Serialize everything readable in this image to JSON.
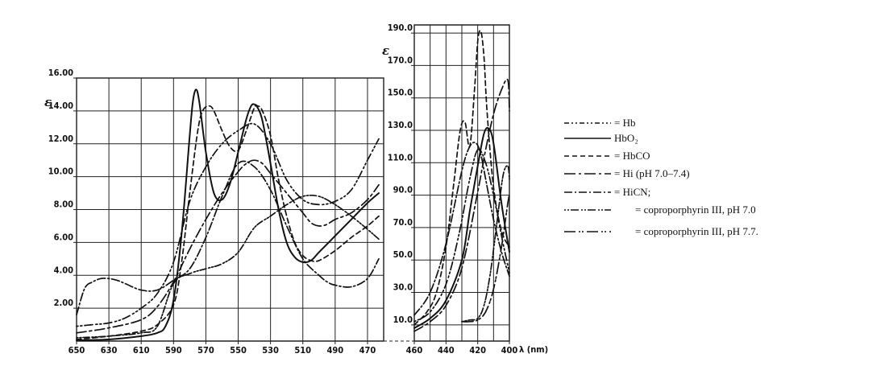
{
  "chart_data": [
    {
      "type": "line",
      "title": "",
      "ylabel": "ε",
      "xlabel": "",
      "xlim": [
        650,
        460
      ],
      "ylim": [
        0,
        16.0
      ],
      "xticks": [
        "650",
        "630",
        "610",
        "590",
        "570",
        "550",
        "530",
        "510",
        "490",
        "470"
      ],
      "yticks": [
        "2.00",
        "4.00",
        "6.00",
        "8.00",
        "10.00",
        "12.00",
        "14.00",
        "16.00"
      ],
      "grid": true,
      "series": [
        {
          "name": "Hb",
          "dash": "2 3 2 3 10 4",
          "x": [
            650,
            640,
            630,
            620,
            610,
            600,
            590,
            580,
            570,
            560,
            550,
            540,
            530,
            520,
            510,
            500,
            490,
            480,
            470,
            463
          ],
          "y": [
            0.9,
            1.0,
            1.1,
            1.4,
            2.0,
            2.9,
            4.8,
            8.5,
            10.6,
            12.0,
            12.8,
            13.2,
            12.0,
            9.8,
            8.6,
            8.3,
            8.5,
            9.2,
            11.0,
            12.3
          ]
        },
        {
          "name": "HbO2",
          "dash": "",
          "x": [
            650,
            630,
            610,
            600,
            595,
            590,
            585,
            580,
            578,
            576,
            574,
            570,
            565,
            560,
            555,
            550,
            545,
            542,
            540,
            538,
            535,
            530,
            525,
            520,
            515,
            510,
            505,
            500,
            490,
            480,
            470,
            463
          ],
          "y": [
            0.05,
            0.1,
            0.3,
            0.5,
            0.9,
            2.5,
            6.5,
            12.5,
            14.6,
            15.3,
            14.5,
            11.5,
            9.0,
            8.6,
            9.6,
            11.5,
            13.5,
            14.3,
            14.4,
            14.2,
            13.4,
            10.8,
            8.0,
            6.0,
            5.1,
            4.8,
            4.9,
            5.4,
            6.4,
            7.4,
            8.4,
            9.0
          ]
        },
        {
          "name": "HbCO",
          "dash": "6 4",
          "x": [
            650,
            630,
            610,
            600,
            590,
            585,
            580,
            575,
            572,
            568,
            565,
            560,
            555,
            550,
            545,
            540,
            538,
            535,
            530,
            525,
            520,
            515,
            510,
            505,
            500,
            490,
            480,
            470,
            463
          ],
          "y": [
            0.1,
            0.3,
            0.6,
            1.0,
            2.2,
            4.8,
            9.0,
            12.8,
            14.0,
            14.3,
            14.0,
            12.8,
            11.8,
            11.6,
            12.8,
            14.2,
            14.3,
            14.0,
            12.5,
            9.8,
            7.6,
            6.0,
            5.2,
            4.9,
            4.9,
            5.5,
            6.3,
            7.0,
            7.6
          ]
        },
        {
          "name": "Hi (pH 7.0–7.4)",
          "dash": "12 4 3 4",
          "x": [
            650,
            630,
            610,
            600,
            590,
            580,
            570,
            560,
            550,
            545,
            540,
            535,
            530,
            520,
            510,
            505,
            500,
            495,
            490,
            480,
            470,
            463
          ],
          "y": [
            0.5,
            0.8,
            1.3,
            2.1,
            3.6,
            5.6,
            7.4,
            9.0,
            10.3,
            10.8,
            11.0,
            10.8,
            10.2,
            9.0,
            7.8,
            7.2,
            7.0,
            7.1,
            7.4,
            7.8,
            8.6,
            9.5
          ]
        },
        {
          "name": "HiCN",
          "dash": "10 3 2 3",
          "x": [
            650,
            645,
            640,
            635,
            630,
            625,
            620,
            610,
            600,
            590,
            580,
            570,
            560,
            550,
            540,
            530,
            520,
            510,
            500,
            495,
            490,
            480,
            470,
            463
          ],
          "y": [
            1.6,
            3.2,
            3.6,
            3.8,
            3.8,
            3.7,
            3.5,
            3.1,
            3.1,
            3.7,
            4.4,
            6.3,
            8.8,
            10.8,
            10.6,
            9.2,
            7.0,
            5.0,
            4.0,
            3.6,
            3.4,
            3.3,
            3.8,
            5.0
          ]
        },
        {
          "name": "coproporphyrin III, pH 7.0",
          "dash": "2 2 2 2 8 3",
          "x": [
            650,
            630,
            610,
            600,
            590,
            580,
            570,
            560,
            550,
            540,
            530,
            520,
            510,
            500,
            490,
            480,
            470,
            463
          ],
          "y": [
            0.2,
            0.3,
            0.5,
            0.9,
            3.5,
            4.1,
            4.4,
            4.7,
            5.4,
            6.9,
            7.6,
            8.3,
            8.8,
            8.8,
            8.3,
            7.6,
            6.8,
            6.2
          ]
        }
      ]
    },
    {
      "type": "line",
      "title": "",
      "ylabel": "ε",
      "xlabel": "λ (nm)",
      "xlim": [
        460,
        400
      ],
      "ylim": [
        0,
        195
      ],
      "xticks": [
        "460",
        "440",
        "420",
        "400"
      ],
      "yticks": [
        "10.0",
        "30.0",
        "50.0",
        "70.0",
        "90.0",
        "110.0",
        "130.0",
        "150.0",
        "170.0",
        "190.0"
      ],
      "grid": true,
      "series": [
        {
          "name": "Hb",
          "x": [
            460,
            450,
            440,
            432,
            425,
            420,
            415,
            410,
            405,
            400
          ],
          "y": [
            12,
            18,
            35,
            65,
            100,
            118,
            110,
            90,
            65,
            42
          ]
        },
        {
          "name": "HbO2",
          "x": [
            460,
            450,
            440,
            430,
            425,
            420,
            416,
            413,
            410,
            405,
            400
          ],
          "y": [
            8,
            14,
            25,
            50,
            80,
            108,
            128,
            131,
            122,
            85,
            55
          ]
        },
        {
          "name": "HbCO",
          "x": [
            460,
            452,
            446,
            440,
            435,
            431,
            428,
            425,
            422,
            420,
            418,
            416,
            414,
            410,
            405,
            400
          ],
          "y": [
            10,
            18,
            30,
            58,
            98,
            130,
            135,
            120,
            155,
            185,
            191,
            175,
            140,
            95,
            68,
            58
          ]
        },
        {
          "name": "Hi (pH 7.0–7.4)",
          "x": [
            460,
            450,
            440,
            430,
            420,
            415,
            410,
            405,
            401,
            400
          ],
          "y": [
            6,
            12,
            22,
            45,
            92,
            118,
            140,
            155,
            161,
            142
          ]
        },
        {
          "name": "HiCN",
          "x": [
            460,
            450,
            440,
            430,
            425,
            421,
            418,
            415,
            410,
            405,
            400
          ],
          "y": [
            16,
            30,
            60,
            105,
            120,
            122,
            115,
            100,
            75,
            55,
            40
          ]
        },
        {
          "name": "coproporphyrin III, pH 7.0",
          "x": [
            430,
            425,
            420,
            416,
            412,
            408,
            404,
            401,
            400
          ],
          "y": [
            12,
            13,
            14,
            22,
            42,
            72,
            102,
            108,
            100
          ]
        },
        {
          "name": "coproporphyrin III, pH 7.7.",
          "x": [
            430,
            425,
            420,
            415,
            410,
            405,
            401,
            400
          ],
          "y": [
            12,
            12,
            13,
            18,
            32,
            58,
            85,
            90
          ]
        }
      ]
    }
  ],
  "legend": {
    "placement": "right",
    "items": [
      {
        "pattern": "— · · — · ·",
        "label": "= Hb"
      },
      {
        "pattern": "————",
        "label": "HbO₂"
      },
      {
        "pattern": "– – – – –",
        "label": "= HbCO"
      },
      {
        "pattern": "—— · ——",
        "label": "= Hi (pH 7.0–7.4)"
      },
      {
        "pattern": "— · — · —",
        "label": "= HiCN;"
      },
      {
        "pattern": "· · · — · · ·",
        "label": "= coproporphyrin III, pH 7.0"
      },
      {
        "pattern": "—— · · ——",
        "label": "= coproporphyrin III, pH 7.7."
      }
    ]
  }
}
